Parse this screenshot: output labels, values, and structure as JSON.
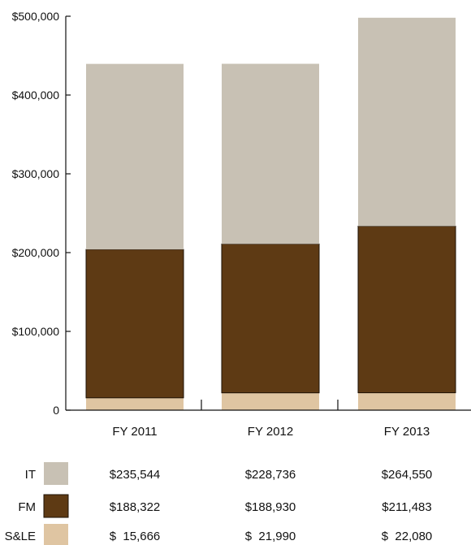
{
  "chart_data": {
    "type": "bar",
    "stacked": true,
    "categories": [
      "FY 2011",
      "FY 2012",
      "FY 2013"
    ],
    "series": [
      {
        "name": "S&LE",
        "values": [
          15666,
          21990,
          22080
        ],
        "color": "#dfc5a2",
        "formatted": [
          "$  15,666",
          "$  21,990",
          "$  22,080"
        ]
      },
      {
        "name": "FM",
        "values": [
          188322,
          188930,
          211483
        ],
        "color": "#5e3a14",
        "formatted": [
          "$188,322",
          "$188,930",
          "$211,483"
        ]
      },
      {
        "name": "IT",
        "values": [
          235544,
          228736,
          264550
        ],
        "color": "#c8c1b4",
        "formatted": [
          "$235,544",
          "$228,736",
          "$264,550"
        ]
      }
    ],
    "ylim": [
      0,
      500000
    ],
    "yticks": [
      0,
      100000,
      200000,
      300000,
      400000,
      500000
    ],
    "ytick_labels": [
      "0",
      "$100,000",
      "$200,000",
      "$300,000",
      "$400,000",
      "$500,000"
    ],
    "title": "",
    "xlabel": "",
    "ylabel": "",
    "grid": false,
    "legend_position": "bottom-table"
  }
}
